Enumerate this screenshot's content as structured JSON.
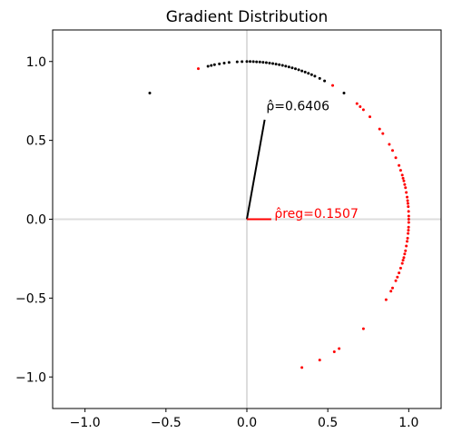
{
  "chart_data": {
    "type": "scatter",
    "title": "Gradient Distribution",
    "xlabel": "",
    "ylabel": "",
    "xlim": [
      -1.2,
      1.2
    ],
    "ylim": [
      -1.2,
      1.2
    ],
    "grid": false,
    "xticks": [
      -1.0,
      -0.5,
      0.0,
      0.5,
      1.0
    ],
    "yticks": [
      -1.0,
      -0.5,
      0.0,
      0.5,
      1.0
    ],
    "xtick_labels": [
      "−1.0",
      "−0.5",
      "0.0",
      "0.5",
      "1.0"
    ],
    "ytick_labels": [
      "−1.0",
      "−0.5",
      "0.0",
      "0.5",
      "1.0"
    ],
    "reference_lines": [
      {
        "orientation": "horizontal",
        "value": 0,
        "color": "#dddddd"
      },
      {
        "orientation": "vertical",
        "value": 0,
        "color": "#dddddd"
      }
    ],
    "series": [
      {
        "color": "#000000",
        "points": [
          [
            -0.6,
            0.8
          ],
          [
            -0.24,
            0.97
          ],
          [
            -0.22,
            0.975
          ],
          [
            -0.2,
            0.98
          ],
          [
            -0.17,
            0.985
          ],
          [
            -0.14,
            0.99
          ],
          [
            -0.11,
            0.994
          ],
          [
            -0.06,
            0.998
          ],
          [
            -0.03,
            0.9995
          ],
          [
            0.0,
            1.0
          ],
          [
            0.02,
            0.9998
          ],
          [
            0.04,
            0.9992
          ],
          [
            0.06,
            0.998
          ],
          [
            0.08,
            0.9968
          ],
          [
            0.1,
            0.995
          ],
          [
            0.12,
            0.9928
          ],
          [
            0.14,
            0.9902
          ],
          [
            0.16,
            0.987
          ],
          [
            0.18,
            0.9837
          ],
          [
            0.2,
            0.98
          ],
          [
            0.22,
            0.9755
          ],
          [
            0.24,
            0.9708
          ],
          [
            0.26,
            0.9656
          ],
          [
            0.28,
            0.96
          ],
          [
            0.3,
            0.954
          ],
          [
            0.32,
            0.9474
          ],
          [
            0.34,
            0.9404
          ],
          [
            0.36,
            0.933
          ],
          [
            0.38,
            0.925
          ],
          [
            0.4,
            0.9165
          ],
          [
            0.42,
            0.9075
          ],
          [
            0.45,
            0.893
          ],
          [
            0.48,
            0.877
          ],
          [
            0.6,
            0.8
          ]
        ]
      },
      {
        "color": "#ff0000",
        "points": [
          [
            -0.3,
            0.955
          ],
          [
            0.53,
            0.848
          ],
          [
            0.68,
            0.733
          ],
          [
            0.7,
            0.714
          ],
          [
            0.72,
            0.694
          ],
          [
            0.76,
            0.65
          ],
          [
            0.82,
            0.572
          ],
          [
            0.84,
            0.543
          ],
          [
            0.88,
            0.475
          ],
          [
            0.9,
            0.436
          ],
          [
            0.92,
            0.39
          ],
          [
            0.94,
            0.341
          ],
          [
            0.95,
            0.31
          ],
          [
            0.96,
            0.28
          ],
          [
            0.965,
            0.26
          ],
          [
            0.97,
            0.243
          ],
          [
            0.975,
            0.22
          ],
          [
            0.98,
            0.2
          ],
          [
            0.985,
            0.17
          ],
          [
            0.99,
            0.14
          ],
          [
            0.993,
            0.118
          ],
          [
            0.995,
            0.1
          ],
          [
            0.997,
            0.08
          ],
          [
            0.999,
            0.05
          ],
          [
            1.0,
            0.02
          ],
          [
            1.0,
            0.0
          ],
          [
            1.0,
            -0.02
          ],
          [
            0.999,
            -0.05
          ],
          [
            0.998,
            -0.07
          ],
          [
            0.996,
            -0.09
          ],
          [
            0.993,
            -0.12
          ],
          [
            0.99,
            -0.14
          ],
          [
            0.985,
            -0.17
          ],
          [
            0.98,
            -0.2
          ],
          [
            0.975,
            -0.22
          ],
          [
            0.97,
            -0.243
          ],
          [
            0.965,
            -0.26
          ],
          [
            0.96,
            -0.28
          ],
          [
            0.95,
            -0.31
          ],
          [
            0.94,
            -0.34
          ],
          [
            0.93,
            -0.367
          ],
          [
            0.92,
            -0.39
          ],
          [
            0.9,
            -0.436
          ],
          [
            0.89,
            -0.456
          ],
          [
            0.86,
            -0.51
          ],
          [
            0.72,
            -0.694
          ],
          [
            0.57,
            -0.82
          ],
          [
            0.54,
            -0.84
          ],
          [
            0.45,
            -0.893
          ],
          [
            0.34,
            -0.94
          ]
        ]
      }
    ],
    "vectors": [
      {
        "x": 0.11,
        "y": 0.631,
        "color": "#000000",
        "label": "ρ̂=0.6406",
        "label_x": 0.12,
        "label_y": 0.69
      },
      {
        "x": 0.1507,
        "y": 0.0,
        "color": "#ff0000",
        "label": "ρ̂reg=0.1507",
        "label_x": 0.17,
        "label_y": 0.01
      }
    ]
  }
}
